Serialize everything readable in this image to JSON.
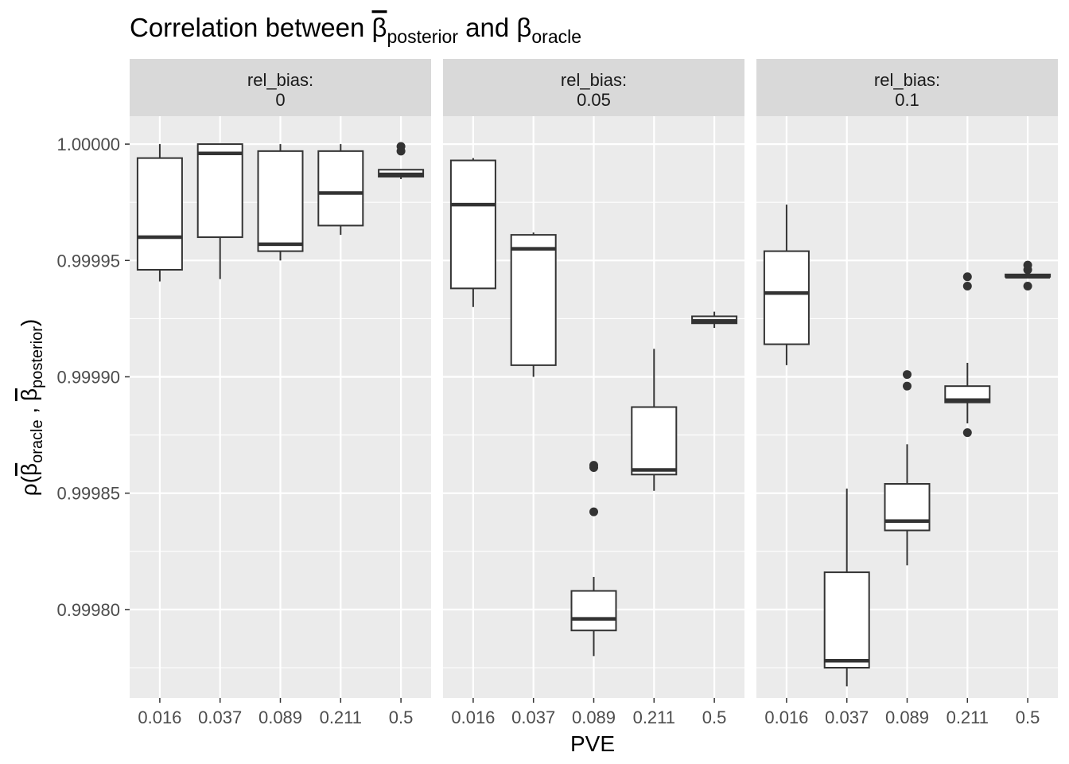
{
  "chart_data": {
    "type": "boxplot",
    "title": {
      "prefix": "Correlation between ",
      "beta_symbol": "β",
      "posterior_sub": "posterior",
      "middle": " and ",
      "oracle_sub": "oracle"
    },
    "xlabel": "PVE",
    "ylabel": {
      "rho": "ρ(",
      "beta": "β",
      "oracle_sub": "oracle",
      "sep": " , ",
      "posterior_sub": "posterior",
      "close": ")"
    },
    "categories": [
      "0.016",
      "0.037",
      "0.089",
      "0.211",
      "0.5"
    ],
    "ylim": [
      0.999762,
      1.000012
    ],
    "yticks": [
      0.9998,
      0.99985,
      0.9999,
      0.99995,
      1.0
    ],
    "ytick_labels": [
      "0.99980",
      "0.99985",
      "0.99990",
      "0.99995",
      "1.00000"
    ],
    "grid": true,
    "facet_variable": "rel_bias",
    "facets": [
      {
        "strip_label": "rel_bias:",
        "strip_value": "0",
        "boxes": [
          {
            "category": "0.016",
            "lower_whisker": 0.999941,
            "q1": 0.999946,
            "median": 0.99996,
            "q3": 0.999994,
            "upper_whisker": 1.0,
            "outliers": []
          },
          {
            "category": "0.037",
            "lower_whisker": 0.999942,
            "q1": 0.99996,
            "median": 0.999996,
            "q3": 1.0,
            "upper_whisker": 1.0,
            "outliers": []
          },
          {
            "category": "0.089",
            "lower_whisker": 0.99995,
            "q1": 0.999954,
            "median": 0.999957,
            "q3": 0.999997,
            "upper_whisker": 1.0,
            "outliers": []
          },
          {
            "category": "0.211",
            "lower_whisker": 0.999961,
            "q1": 0.999965,
            "median": 0.999979,
            "q3": 0.999997,
            "upper_whisker": 1.0,
            "outliers": []
          },
          {
            "category": "0.5",
            "lower_whisker": 0.999985,
            "q1": 0.999986,
            "median": 0.999987,
            "q3": 0.999989,
            "upper_whisker": 0.999989,
            "outliers": [
              0.999997,
              0.999999
            ]
          }
        ]
      },
      {
        "strip_label": "rel_bias:",
        "strip_value": "0.05",
        "boxes": [
          {
            "category": "0.016",
            "lower_whisker": 0.99993,
            "q1": 0.999938,
            "median": 0.999974,
            "q3": 0.999993,
            "upper_whisker": 0.999994,
            "outliers": []
          },
          {
            "category": "0.037",
            "lower_whisker": 0.9999,
            "q1": 0.999905,
            "median": 0.999955,
            "q3": 0.999961,
            "upper_whisker": 0.999962,
            "outliers": []
          },
          {
            "category": "0.089",
            "lower_whisker": 0.99978,
            "q1": 0.999791,
            "median": 0.999796,
            "q3": 0.999808,
            "upper_whisker": 0.999814,
            "outliers": [
              0.999842,
              0.999861,
              0.999862
            ]
          },
          {
            "category": "0.211",
            "lower_whisker": 0.999851,
            "q1": 0.999858,
            "median": 0.99986,
            "q3": 0.999887,
            "upper_whisker": 0.999912,
            "outliers": []
          },
          {
            "category": "0.5",
            "lower_whisker": 0.999921,
            "q1": 0.999923,
            "median": 0.999924,
            "q3": 0.999926,
            "upper_whisker": 0.999928,
            "outliers": []
          }
        ]
      },
      {
        "strip_label": "rel_bias:",
        "strip_value": "0.1",
        "boxes": [
          {
            "category": "0.016",
            "lower_whisker": 0.999905,
            "q1": 0.999914,
            "median": 0.999936,
            "q3": 0.999954,
            "upper_whisker": 0.999974,
            "outliers": []
          },
          {
            "category": "0.037",
            "lower_whisker": 0.999767,
            "q1": 0.999775,
            "median": 0.999778,
            "q3": 0.999816,
            "upper_whisker": 0.999852,
            "outliers": []
          },
          {
            "category": "0.089",
            "lower_whisker": 0.999819,
            "q1": 0.999834,
            "median": 0.999838,
            "q3": 0.999854,
            "upper_whisker": 0.999871,
            "outliers": [
              0.999896,
              0.999901
            ]
          },
          {
            "category": "0.211",
            "lower_whisker": 0.99988,
            "q1": 0.999889,
            "median": 0.99989,
            "q3": 0.999896,
            "upper_whisker": 0.999906,
            "outliers": [
              0.999876,
              0.999939,
              0.999943
            ]
          },
          {
            "category": "0.5",
            "lower_whisker": 0.999943,
            "q1": 0.999943,
            "median": 0.999943,
            "q3": 0.999944,
            "upper_whisker": 0.999944,
            "outliers": [
              0.999939,
              0.999946,
              0.999948
            ]
          }
        ]
      }
    ],
    "colors": {
      "panel_background": "#ebebeb",
      "strip_background": "#d9d9d9",
      "grid": "#ffffff",
      "box_fill": "#ffffff",
      "box_stroke": "#333333",
      "outlier": "#333333"
    }
  }
}
